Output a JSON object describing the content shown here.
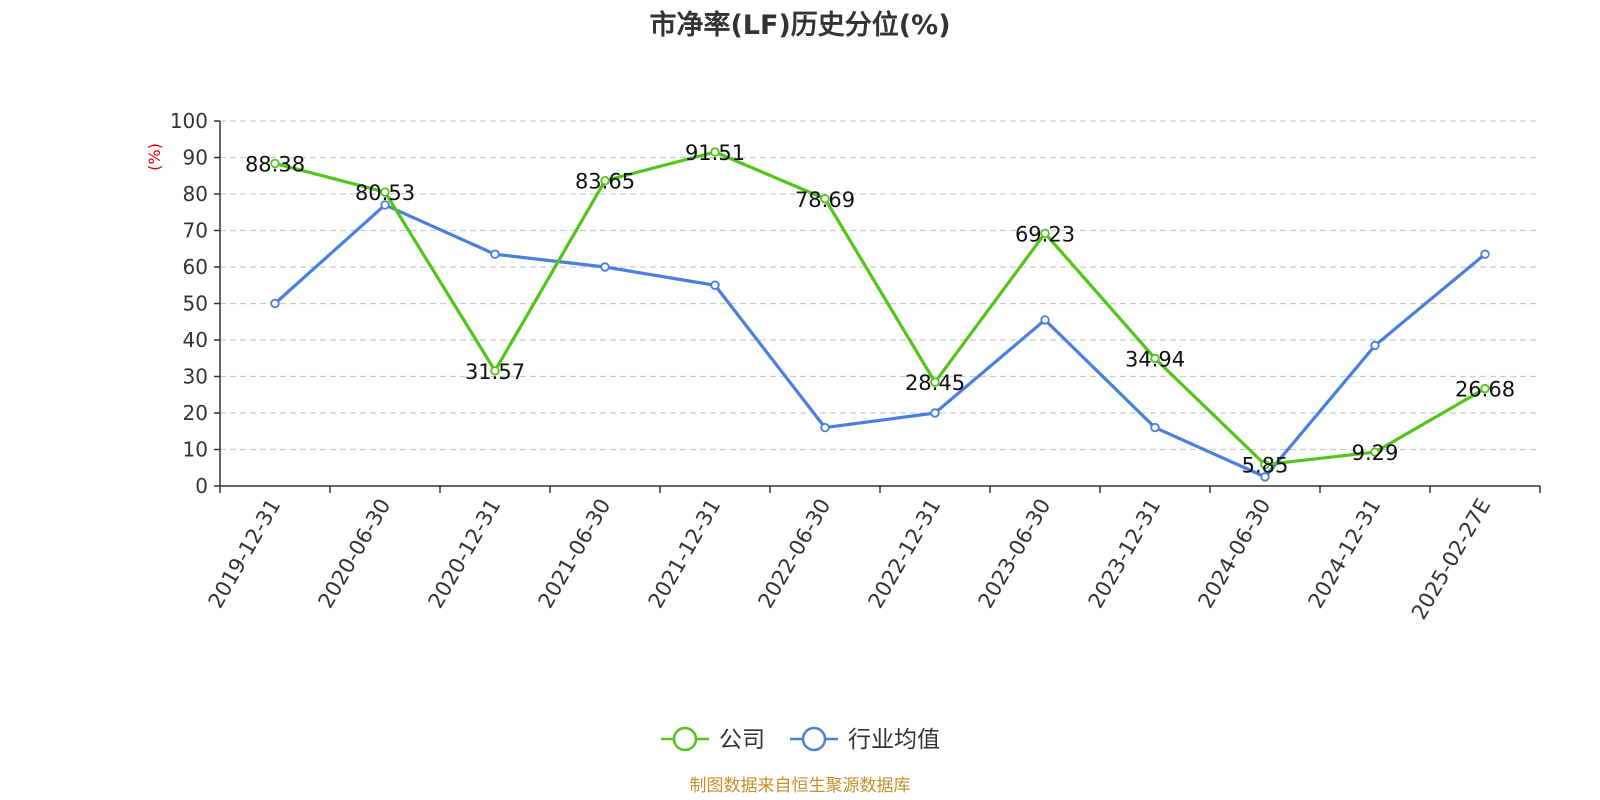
{
  "chart_data": {
    "type": "line",
    "title": "市净率(LF)历史分位(%)",
    "ylabel": "(%)",
    "ylim": [
      0,
      100
    ],
    "yticks": [
      0,
      10,
      20,
      30,
      40,
      50,
      60,
      70,
      80,
      90,
      100
    ],
    "grid": true,
    "legend_position": "bottom-center",
    "categories": [
      "2019-12-31",
      "2020-06-30",
      "2020-12-31",
      "2021-06-30",
      "2021-12-31",
      "2022-06-30",
      "2022-12-31",
      "2023-06-30",
      "2023-12-31",
      "2024-06-30",
      "2024-12-31",
      "2025-02-27E"
    ],
    "series": [
      {
        "name": "公司",
        "color": "#52c41a",
        "values": [
          88.38,
          80.53,
          31.57,
          83.65,
          91.51,
          78.69,
          28.45,
          69.23,
          34.94,
          5.85,
          9.29,
          26.68
        ],
        "labels": [
          "88.38",
          "80.53",
          "31.57",
          "83.65",
          "91.51",
          "78.69",
          "28.45",
          "69.23",
          "34.94",
          "5.85",
          "9.29",
          "26.68"
        ]
      },
      {
        "name": "行业均值",
        "color": "#4a7fdc",
        "values": [
          50,
          77,
          63.5,
          60,
          55,
          16,
          20,
          45.5,
          16,
          2.5,
          38.5,
          63.5
        ]
      }
    ],
    "source": "制图数据来自恒生聚源数据库"
  }
}
